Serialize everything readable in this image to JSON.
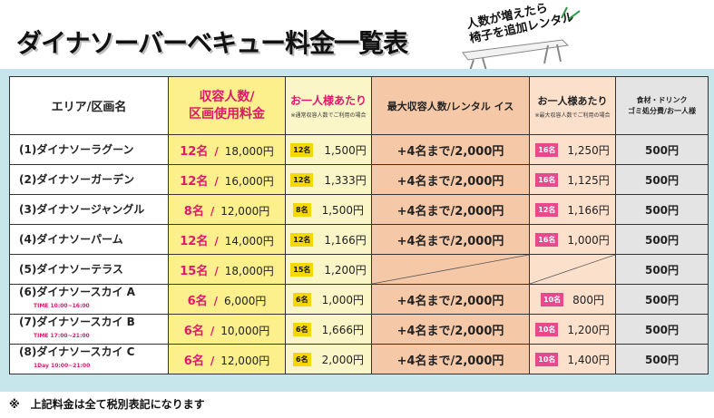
{
  "title": "ダイナソーバーベキュー料金一覧表",
  "callout": {
    "line1": "人数が増えたら",
    "line2": "椅子を追加レンタル"
  },
  "headers": {
    "area": "エリア/区画名",
    "capacity_line1": "収容人数/",
    "capacity_line2": "区画使用料金",
    "per_person": "お一人様あたり",
    "per_person_note": "※通常収容人数でご利用の場合",
    "max_capacity": "最大収容人数/レンタル イス",
    "per_person_max": "お一人様あたり",
    "per_person_max_note": "※最大収容人数でご利用の場合",
    "food_line1": "食材・ドリンク",
    "food_line2": "ゴミ処分費/お一人様"
  },
  "rows": [
    {
      "area": "(1)ダイナソーラグーン",
      "time": "",
      "capacity": "12名",
      "fee": "18,000円",
      "pp_badge": "12名",
      "pp_value": "1,500円",
      "max": "+4名まで/2,000円",
      "pp2_badge": "16名",
      "pp2_value": "1,250円",
      "food": "500円"
    },
    {
      "area": "(2)ダイナソーガーデン",
      "time": "",
      "capacity": "12名",
      "fee": "16,000円",
      "pp_badge": "12名",
      "pp_value": "1,333円",
      "max": "+4名まで/2,000円",
      "pp2_badge": "16名",
      "pp2_value": "1,125円",
      "food": "500円"
    },
    {
      "area": "(3)ダイナソージャングル",
      "time": "",
      "capacity": "8名",
      "fee": "12,000円",
      "pp_badge": "8名",
      "pp_value": "1,500円",
      "max": "+4名まで/2,000円",
      "pp2_badge": "12名",
      "pp2_value": "1,166円",
      "food": "500円"
    },
    {
      "area": "(4)ダイナソーパーム",
      "time": "",
      "capacity": "12名",
      "fee": "14,000円",
      "pp_badge": "12名",
      "pp_value": "1,166円",
      "max": "+4名まで/2,000円",
      "pp2_badge": "16名",
      "pp2_value": "1,000円",
      "food": "500円"
    },
    {
      "area": "(5)ダイナソーテラス",
      "time": "",
      "capacity": "15名",
      "fee": "18,000円",
      "pp_badge": "15名",
      "pp_value": "1,200円",
      "max": "",
      "pp2_badge": "",
      "pp2_value": "",
      "food": "500円"
    },
    {
      "area": "(6)ダイナソースカイ A",
      "time": "TIME 10:00~16:00",
      "capacity": "6名",
      "fee": "6,000円",
      "pp_badge": "6名",
      "pp_value": "1,000円",
      "max": "+4名まで/2,000円",
      "pp2_badge": "10名",
      "pp2_value": "800円",
      "food": "500円"
    },
    {
      "area": "(7)ダイナソースカイ B",
      "time": "TIME 17:00~21:00",
      "capacity": "6名",
      "fee": "10,000円",
      "pp_badge": "6名",
      "pp_value": "1,666円",
      "max": "+4名まで/2,000円",
      "pp2_badge": "10名",
      "pp2_value": "1,200円",
      "food": "500円"
    },
    {
      "area": "(8)ダイナソースカイ C",
      "time": "1Day 10:00~21:00",
      "capacity": "6名",
      "fee": "12,000円",
      "pp_badge": "6名",
      "pp_value": "2,000円",
      "max": "+4名まで/2,000円",
      "pp2_badge": "10名",
      "pp2_value": "1,400円",
      "food": "500円"
    }
  ],
  "footnote": "※　上記料金は全て税別表記になります",
  "colors": {
    "accent_pink": "#e0186c",
    "capacity_bg": "#fcf08c",
    "per_person_bg": "#fbf6c8",
    "max_bg": "#f5c8a8",
    "per_person_max_bg": "#fbe0cc",
    "food_bg": "#e4e4e4",
    "panel_bg": "#c6e6ec"
  }
}
